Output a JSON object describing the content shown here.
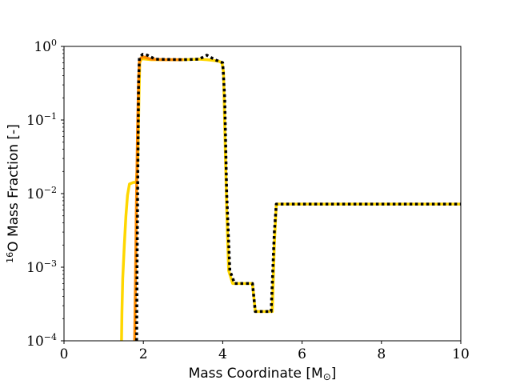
{
  "chart_data": {
    "type": "line",
    "xlabel": "Mass Coordinate [M",
    "xlabel_symbol": "⊙",
    "xlabel_close": "]",
    "ylabel_prefix": "16",
    "ylabel": "O Mass Fraction [-]",
    "xlim": [
      0,
      10
    ],
    "ylim": [
      0.0001,
      1
    ],
    "yscale": "log",
    "grid": false,
    "legend": "none",
    "x_ticks": [
      {
        "value": 0,
        "label": "0"
      },
      {
        "value": 2,
        "label": "2"
      },
      {
        "value": 4,
        "label": "4"
      },
      {
        "value": 6,
        "label": "6"
      },
      {
        "value": 8,
        "label": "8"
      },
      {
        "value": 10,
        "label": "10"
      }
    ],
    "y_ticks": [
      {
        "value": 0.0001,
        "base": "10",
        "exp": "−4"
      },
      {
        "value": 0.001,
        "base": "10",
        "exp": "−3"
      },
      {
        "value": 0.01,
        "base": "10",
        "exp": "−2"
      },
      {
        "value": 0.1,
        "base": "10",
        "exp": "−1"
      },
      {
        "value": 1,
        "base": "10",
        "exp": "0"
      }
    ],
    "series": [
      {
        "color": "#ffd700",
        "style": "solid",
        "points": [
          [
            1.45,
            0.0001
          ],
          [
            1.46,
            0.00024
          ],
          [
            1.48,
            0.0007
          ],
          [
            1.52,
            0.002
          ],
          [
            1.56,
            0.005
          ],
          [
            1.6,
            0.0095
          ],
          [
            1.65,
            0.0135
          ],
          [
            1.75,
            0.0142
          ],
          [
            1.82,
            0.0142
          ],
          [
            1.86,
            0.03
          ],
          [
            1.89,
            0.2
          ],
          [
            1.91,
            0.6
          ],
          [
            1.95,
            0.68
          ],
          [
            2.2,
            0.66
          ],
          [
            3.0,
            0.66
          ],
          [
            3.4,
            0.67
          ],
          [
            3.6,
            0.66
          ],
          [
            3.8,
            0.64
          ],
          [
            3.9,
            0.63
          ],
          [
            3.98,
            0.6
          ],
          [
            4.02,
            0.45
          ],
          [
            4.06,
            0.05
          ],
          [
            4.1,
            0.006
          ],
          [
            4.15,
            0.0009
          ],
          [
            4.25,
            0.0006
          ],
          [
            4.75,
            0.0006
          ],
          [
            4.82,
            0.00025
          ],
          [
            5.25,
            0.00025
          ],
          [
            5.3,
            0.002
          ],
          [
            5.35,
            0.0072
          ],
          [
            10,
            0.0072
          ]
        ]
      },
      {
        "color": "#ff8c00",
        "style": "solid",
        "points": [
          [
            1.78,
            0.0001
          ],
          [
            1.8,
            0.0006
          ],
          [
            1.82,
            0.005
          ],
          [
            1.85,
            0.06
          ],
          [
            1.88,
            0.35
          ],
          [
            1.9,
            0.62
          ],
          [
            1.94,
            0.7
          ],
          [
            2.0,
            0.72
          ],
          [
            2.2,
            0.67
          ],
          [
            2.5,
            0.66
          ],
          [
            3.0,
            0.66
          ]
        ]
      },
      {
        "color": "#000000",
        "style": "dotted",
        "points": [
          [
            1.83,
            0.0001
          ],
          [
            1.84,
            0.001
          ],
          [
            1.86,
            0.02
          ],
          [
            1.88,
            0.3
          ],
          [
            1.9,
            0.7
          ],
          [
            1.98,
            0.78
          ],
          [
            2.1,
            0.76
          ],
          [
            2.3,
            0.67
          ],
          [
            3.0,
            0.66
          ],
          [
            3.4,
            0.67
          ],
          [
            3.6,
            0.76
          ],
          [
            3.8,
            0.66
          ],
          [
            4.0,
            0.6
          ],
          [
            4.05,
            0.2
          ],
          [
            4.1,
            0.01
          ],
          [
            4.18,
            0.0009
          ],
          [
            4.3,
            0.0006
          ],
          [
            4.75,
            0.0006
          ],
          [
            4.82,
            0.00025
          ],
          [
            5.22,
            0.00025
          ],
          [
            5.3,
            0.003
          ],
          [
            5.35,
            0.0072
          ],
          [
            10,
            0.0072
          ]
        ]
      }
    ]
  }
}
